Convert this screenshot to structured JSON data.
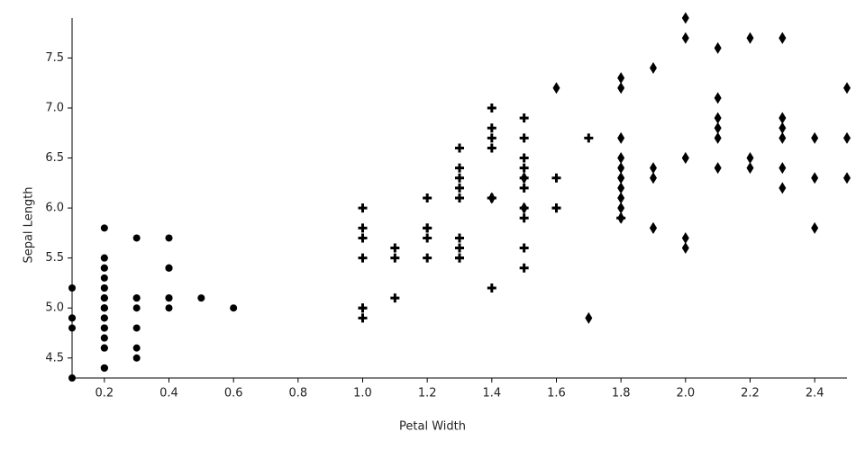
{
  "chart_data": {
    "type": "scatter",
    "xlabel": "Petal Width",
    "ylabel": "Sepal Length",
    "xlim": [
      0.1,
      2.5
    ],
    "xticks": [
      0.2,
      0.4,
      0.6,
      0.8,
      {
        "value": 1,
        "label": "1.0"
      },
      1.2,
      1.4,
      1.6,
      1.8,
      {
        "value": 2,
        "label": "2.0"
      },
      2.2,
      2.4
    ],
    "ylim": [
      4.3,
      7.9
    ],
    "yticks": [
      4.5,
      {
        "value": 5,
        "label": "5.0"
      },
      5.5,
      {
        "value": 6,
        "label": "6.0"
      },
      6.5,
      {
        "value": 7,
        "label": "7.0"
      },
      7.5
    ],
    "series": [
      {
        "shape": "circle",
        "color": "#000000",
        "x": [
          0.2,
          0.2,
          0.2,
          0.2,
          0.2,
          0.4,
          0.3,
          0.2,
          0.2,
          0.1,
          0.2,
          0.2,
          0.1,
          0.1,
          0.2,
          0.4,
          0.4,
          0.3,
          0.3,
          0.3,
          0.2,
          0.4,
          0.2,
          0.5,
          0.2,
          0.2,
          0.4,
          0.2,
          0.2,
          0.2,
          0.2,
          0.4,
          0.1,
          0.2,
          0.2,
          0.2,
          0.2,
          0.1,
          0.2,
          0.2,
          0.3,
          0.3,
          0.2,
          0.6,
          0.4,
          0.3,
          0.2,
          0.2,
          0.2,
          0.2
        ],
        "values": [
          5.1,
          4.9,
          4.7,
          4.6,
          5,
          5.4,
          4.6,
          5,
          4.4,
          4.9,
          5.4,
          4.8,
          4.8,
          4.3,
          5.8,
          5.7,
          5.4,
          5.1,
          5.7,
          5.1,
          5.4,
          5.1,
          4.6,
          5.1,
          4.8,
          5,
          5,
          5.2,
          5.2,
          4.7,
          4.8,
          5.4,
          5.2,
          5.5,
          4.9,
          5,
          5.5,
          4.9,
          4.4,
          5.1,
          5,
          4.5,
          4.4,
          5,
          5.1,
          4.8,
          5.1,
          4.6,
          5.3,
          5
        ]
      },
      {
        "shape": "plus",
        "color": "#000000",
        "x": [
          1.4,
          1.5,
          1.5,
          1.3,
          1.5,
          1.3,
          1.6,
          1,
          1.3,
          1.4,
          1,
          1.5,
          1,
          1.4,
          1.3,
          1.4,
          1.5,
          1,
          1.5,
          1.1,
          1.8,
          1.3,
          1.5,
          1.2,
          1.3,
          1.4,
          1.4,
          1.7,
          1.5,
          1,
          1.1,
          1,
          1.2,
          1.6,
          1.5,
          1.6,
          1.5,
          1.3,
          1.3,
          1.3,
          1.2,
          1.4,
          1.2,
          1,
          1.3,
          1.2,
          1.3,
          1.3,
          1.1,
          1.3
        ],
        "values": [
          7,
          6.4,
          6.9,
          5.5,
          6.5,
          5.7,
          6.3,
          4.9,
          6.6,
          5.2,
          5,
          5.9,
          6,
          6.1,
          5.6,
          6.7,
          5.6,
          5.8,
          6.2,
          5.6,
          5.9,
          6.1,
          6.3,
          6.1,
          6.4,
          6.6,
          6.8,
          6.7,
          6,
          5.7,
          5.5,
          5.5,
          5.8,
          6,
          5.4,
          6,
          6.7,
          6.3,
          5.6,
          5.5,
          5.5,
          6.1,
          5.8,
          5,
          5.6,
          5.7,
          5.7,
          6.2,
          5.1,
          5.7
        ]
      },
      {
        "shape": "diamond",
        "color": "#000000",
        "x": [
          2.5,
          1.9,
          2.1,
          1.8,
          2.2,
          2.1,
          1.7,
          1.8,
          1.8,
          2.5,
          2,
          1.9,
          2.1,
          2,
          2.4,
          2.3,
          1.8,
          2.2,
          2.3,
          1.5,
          2.3,
          2,
          2,
          1.8,
          2.1,
          1.8,
          1.8,
          1.8,
          2.1,
          1.6,
          1.9,
          2,
          2.2,
          1.5,
          1.4,
          2.3,
          2.4,
          1.8,
          1.8,
          2.1,
          2.4,
          2.3,
          1.9,
          2.3,
          2.5,
          2.3,
          1.9,
          2,
          2.3,
          1.8
        ],
        "values": [
          6.3,
          5.8,
          7.1,
          6.3,
          6.5,
          7.6,
          4.9,
          7.3,
          6.7,
          7.2,
          6.5,
          6.4,
          6.8,
          5.7,
          5.8,
          6.4,
          6.5,
          7.7,
          7.7,
          6,
          6.9,
          5.6,
          7.7,
          6.3,
          6.7,
          7.2,
          6.2,
          6.1,
          6.4,
          7.2,
          7.4,
          7.9,
          6.4,
          6.3,
          6.1,
          7.7,
          6.3,
          6.4,
          6,
          6.9,
          6.7,
          6.9,
          5.8,
          6.8,
          6.7,
          6.7,
          6.3,
          6.5,
          6.2,
          5.9
        ]
      }
    ]
  }
}
